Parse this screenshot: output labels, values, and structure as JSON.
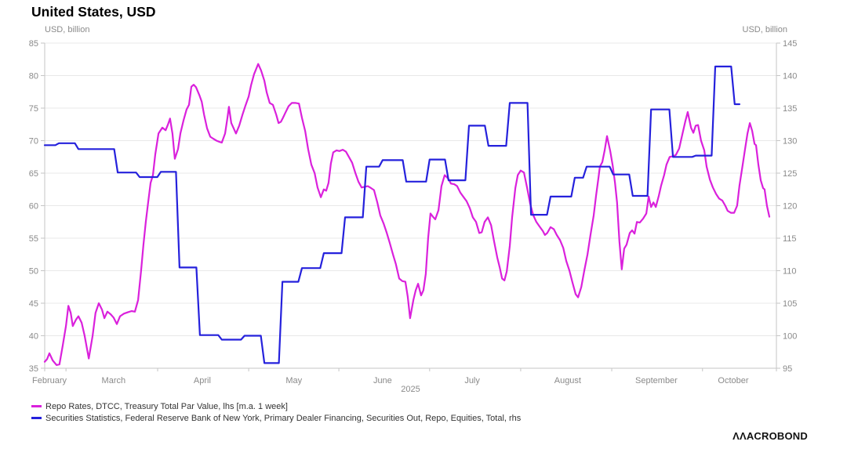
{
  "header": {
    "title": "United States, USD"
  },
  "footer": {
    "logo_text": "ΛΛACROBOND"
  },
  "colors": {
    "magenta": "#DA21DC",
    "blue": "#2521DC",
    "grid": "#E8E8E8",
    "axis": "#C6C6C6",
    "tick_text": "#8A8A8A",
    "legend_text": "#333333",
    "title_text": "#000000"
  },
  "chart_data": {
    "type": "line",
    "title": "United States, USD",
    "grid": "horizontal-only",
    "legend_position": "bottom-left",
    "left_axis": {
      "unit": "USD, billion",
      "min": 35,
      "max": 85,
      "ticks": [
        85,
        80,
        75,
        70,
        65,
        60,
        55,
        50,
        45,
        40,
        35
      ]
    },
    "right_axis": {
      "unit": "USD, billion",
      "min": 95,
      "max": 145,
      "ticks": [
        145,
        140,
        135,
        130,
        125,
        120,
        115,
        110,
        105,
        100,
        95
      ]
    },
    "x_axis": {
      "range": [
        0,
        247.5
      ],
      "tick_days": [
        0,
        7.2,
        38.2,
        69,
        99.5,
        130.2,
        161,
        191.8,
        222.5,
        247.5
      ],
      "months": [
        {
          "label": "February",
          "d": 1.6
        },
        {
          "label": "March",
          "d": 23.3
        },
        {
          "label": "April",
          "d": 53.3
        },
        {
          "label": "May",
          "d": 84.3
        },
        {
          "label": "June",
          "d": 114.3
        },
        {
          "label": "July",
          "d": 144.6
        },
        {
          "label": "August",
          "d": 176.9
        },
        {
          "label": "September",
          "d": 206.9
        },
        {
          "label": "October",
          "d": 232.9
        }
      ],
      "year_label": "2025"
    },
    "series": [
      {
        "label": "Repo Rates, DTCC, Treasury Total Par Value, lhs [m.a. 1 week]",
        "color": "#DA21DC",
        "axis": "left",
        "render": "line",
        "points": [
          [
            0,
            36.0
          ],
          [
            0.8,
            36.4
          ],
          [
            1.6,
            37.3
          ],
          [
            2.7,
            36.2
          ],
          [
            4,
            35.5
          ],
          [
            5,
            35.6
          ],
          [
            6.1,
            38.5
          ],
          [
            7.2,
            41.5
          ],
          [
            8,
            44.6
          ],
          [
            8.8,
            43.5
          ],
          [
            9.5,
            41.5
          ],
          [
            10.6,
            42.5
          ],
          [
            11.4,
            43.0
          ],
          [
            12.5,
            42.0
          ],
          [
            13.5,
            40.0
          ],
          [
            14.9,
            36.5
          ],
          [
            16.2,
            40.0
          ],
          [
            17.2,
            43.5
          ],
          [
            18.3,
            45.0
          ],
          [
            19.4,
            44.0
          ],
          [
            20.2,
            42.7
          ],
          [
            21.2,
            43.7
          ],
          [
            22.3,
            43.3
          ],
          [
            23.3,
            42.8
          ],
          [
            24.4,
            41.8
          ],
          [
            25.5,
            43.0
          ],
          [
            26.8,
            43.4
          ],
          [
            28.1,
            43.6
          ],
          [
            29.4,
            43.8
          ],
          [
            30.5,
            43.7
          ],
          [
            31.6,
            45.5
          ],
          [
            32.6,
            50.0
          ],
          [
            33.4,
            54.0
          ],
          [
            34.2,
            57.5
          ],
          [
            35,
            60.5
          ],
          [
            35.8,
            63.5
          ],
          [
            36.6,
            64.7
          ],
          [
            37.4,
            67.9
          ],
          [
            38.5,
            71.1
          ],
          [
            39.8,
            72.0
          ],
          [
            40.9,
            71.6
          ],
          [
            41.7,
            72.5
          ],
          [
            42.4,
            73.4
          ],
          [
            43.2,
            71.1
          ],
          [
            44,
            67.2
          ],
          [
            45.1,
            68.7
          ],
          [
            45.9,
            71.1
          ],
          [
            47,
            73.2
          ],
          [
            48,
            74.8
          ],
          [
            48.8,
            75.5
          ],
          [
            49.6,
            78.3
          ],
          [
            50.4,
            78.6
          ],
          [
            51.2,
            78.2
          ],
          [
            52.3,
            77.0
          ],
          [
            53.1,
            76.0
          ],
          [
            53.9,
            74.0
          ],
          [
            54.9,
            71.9
          ],
          [
            56,
            70.6
          ],
          [
            57,
            70.3
          ],
          [
            58.1,
            70.0
          ],
          [
            59.2,
            69.8
          ],
          [
            59.9,
            69.7
          ],
          [
            61,
            71.1
          ],
          [
            61.8,
            73.5
          ],
          [
            62.3,
            75.2
          ],
          [
            63.1,
            72.7
          ],
          [
            63.9,
            71.9
          ],
          [
            64.7,
            71.1
          ],
          [
            65.8,
            72.3
          ],
          [
            66.9,
            74.0
          ],
          [
            67.9,
            75.4
          ],
          [
            69,
            76.8
          ],
          [
            69.8,
            78.5
          ],
          [
            70.8,
            80.2
          ],
          [
            72.2,
            81.8
          ],
          [
            73.2,
            80.8
          ],
          [
            74.3,
            79.2
          ],
          [
            75.1,
            77.4
          ],
          [
            76.1,
            75.8
          ],
          [
            77.2,
            75.5
          ],
          [
            78.3,
            74.0
          ],
          [
            79.1,
            72.7
          ],
          [
            79.9,
            72.9
          ],
          [
            80.6,
            73.5
          ],
          [
            81.4,
            74.3
          ],
          [
            82.5,
            75.3
          ],
          [
            83.6,
            75.8
          ],
          [
            84.9,
            75.8
          ],
          [
            86,
            75.7
          ],
          [
            87,
            73.5
          ],
          [
            88.1,
            71.5
          ],
          [
            89.1,
            68.7
          ],
          [
            90.2,
            66.3
          ],
          [
            91.3,
            65.0
          ],
          [
            92.3,
            62.8
          ],
          [
            93.4,
            61.3
          ],
          [
            94.4,
            62.5
          ],
          [
            95.2,
            62.3
          ],
          [
            96,
            63.5
          ],
          [
            96.8,
            66.5
          ],
          [
            97.6,
            68.2
          ],
          [
            98.7,
            68.5
          ],
          [
            99.7,
            68.4
          ],
          [
            100.8,
            68.6
          ],
          [
            101.9,
            68.3
          ],
          [
            102.9,
            67.5
          ],
          [
            104,
            66.6
          ],
          [
            105.1,
            65.0
          ],
          [
            106.1,
            63.7
          ],
          [
            107.2,
            62.8
          ],
          [
            108.2,
            62.9
          ],
          [
            109.3,
            63.0
          ],
          [
            110.4,
            62.7
          ],
          [
            111.4,
            62.4
          ],
          [
            112.5,
            60.5
          ],
          [
            113.5,
            58.5
          ],
          [
            114.6,
            57.3
          ],
          [
            115.7,
            55.8
          ],
          [
            116.7,
            54.3
          ],
          [
            117.8,
            52.5
          ],
          [
            118.8,
            51.0
          ],
          [
            119.9,
            48.8
          ],
          [
            121,
            48.4
          ],
          [
            122,
            48.3
          ],
          [
            122.8,
            46.0
          ],
          [
            123.6,
            42.7
          ],
          [
            124.7,
            45.5
          ],
          [
            125.5,
            47.0
          ],
          [
            126.3,
            48.0
          ],
          [
            127.3,
            46.2
          ],
          [
            128.1,
            47.0
          ],
          [
            128.9,
            49.5
          ],
          [
            129.7,
            55.0
          ],
          [
            130.5,
            58.8
          ],
          [
            131.3,
            58.3
          ],
          [
            132.1,
            57.9
          ],
          [
            133.2,
            59.3
          ],
          [
            134.2,
            63.0
          ],
          [
            135.3,
            64.7
          ],
          [
            136.4,
            64.2
          ],
          [
            137.4,
            63.4
          ],
          [
            138.5,
            63.3
          ],
          [
            139.5,
            63.0
          ],
          [
            140.6,
            62.0
          ],
          [
            141.7,
            61.3
          ],
          [
            142.7,
            60.7
          ],
          [
            143.8,
            59.6
          ],
          [
            144.8,
            58.2
          ],
          [
            145.9,
            57.5
          ],
          [
            147,
            55.8
          ],
          [
            147.8,
            55.9
          ],
          [
            148.8,
            57.5
          ],
          [
            149.9,
            58.2
          ],
          [
            151,
            57.0
          ],
          [
            152,
            54.5
          ],
          [
            153.1,
            52.0
          ],
          [
            153.9,
            50.5
          ],
          [
            154.7,
            48.8
          ],
          [
            155.5,
            48.5
          ],
          [
            156.3,
            49.9
          ],
          [
            157.3,
            53.8
          ],
          [
            158.1,
            58.2
          ],
          [
            159.2,
            62.7
          ],
          [
            160,
            64.7
          ],
          [
            161,
            65.4
          ],
          [
            162.1,
            65.1
          ],
          [
            163.2,
            62.7
          ],
          [
            164.2,
            60.3
          ],
          [
            165.3,
            58.5
          ],
          [
            166.3,
            57.5
          ],
          [
            167.4,
            56.8
          ],
          [
            168.5,
            56.1
          ],
          [
            169.2,
            55.5
          ],
          [
            170,
            55.8
          ],
          [
            171.1,
            56.7
          ],
          [
            172.2,
            56.4
          ],
          [
            173.2,
            55.5
          ],
          [
            174.3,
            54.7
          ],
          [
            175.4,
            53.5
          ],
          [
            176.4,
            51.5
          ],
          [
            177.5,
            50.0
          ],
          [
            178.5,
            48.2
          ],
          [
            179.6,
            46.4
          ],
          [
            180.4,
            45.9
          ],
          [
            181.5,
            47.5
          ],
          [
            182.5,
            50.0
          ],
          [
            183.6,
            52.5
          ],
          [
            184.6,
            55.5
          ],
          [
            185.7,
            58.5
          ],
          [
            186.5,
            61.5
          ],
          [
            187.3,
            64.3
          ],
          [
            187.8,
            66.0
          ],
          [
            188.6,
            66.7
          ],
          [
            189.4,
            68.5
          ],
          [
            190.2,
            70.7
          ],
          [
            191.3,
            68.4
          ],
          [
            192.1,
            66.2
          ],
          [
            192.9,
            63.5
          ],
          [
            193.6,
            60.5
          ],
          [
            194.4,
            54.5
          ],
          [
            195.2,
            50.2
          ],
          [
            196,
            53.4
          ],
          [
            196.8,
            54.0
          ],
          [
            197.9,
            55.8
          ],
          [
            198.7,
            56.2
          ],
          [
            199.5,
            55.7
          ],
          [
            200.3,
            57.5
          ],
          [
            201.3,
            57.4
          ],
          [
            202.4,
            58.0
          ],
          [
            203.5,
            58.8
          ],
          [
            204.3,
            61.4
          ],
          [
            205.1,
            59.8
          ],
          [
            205.9,
            60.5
          ],
          [
            206.7,
            59.8
          ],
          [
            207.7,
            61.5
          ],
          [
            208.5,
            63.1
          ],
          [
            209.5,
            64.7
          ],
          [
            210.3,
            66.3
          ],
          [
            211.4,
            67.5
          ],
          [
            212.5,
            67.6
          ],
          [
            213.5,
            67.8
          ],
          [
            214.6,
            68.8
          ],
          [
            215.7,
            71.0
          ],
          [
            216.7,
            73.0
          ],
          [
            217.5,
            74.4
          ],
          [
            218.6,
            72.0
          ],
          [
            219.4,
            71.2
          ],
          [
            220.2,
            72.3
          ],
          [
            221,
            72.4
          ],
          [
            222,
            70.0
          ],
          [
            223.1,
            68.5
          ],
          [
            223.9,
            66.0
          ],
          [
            225,
            64.0
          ],
          [
            226,
            62.8
          ],
          [
            227.1,
            61.8
          ],
          [
            228.1,
            61.1
          ],
          [
            229.2,
            60.8
          ],
          [
            230.2,
            60.0
          ],
          [
            231,
            59.2
          ],
          [
            232.1,
            58.9
          ],
          [
            233.2,
            58.9
          ],
          [
            234.2,
            60.0
          ],
          [
            235,
            63.1
          ],
          [
            236.1,
            66.3
          ],
          [
            236.9,
            68.7
          ],
          [
            237.7,
            71.1
          ],
          [
            238.5,
            72.7
          ],
          [
            239.3,
            71.5
          ],
          [
            240.1,
            69.5
          ],
          [
            240.6,
            69.3
          ],
          [
            241.4,
            66.3
          ],
          [
            242.2,
            63.9
          ],
          [
            243,
            62.7
          ],
          [
            243.5,
            62.5
          ],
          [
            244.3,
            60.0
          ],
          [
            245.1,
            58.3
          ]
        ]
      },
      {
        "label": "Securities Statistics, Federal Reserve Bank of New York, Primary Dealer Financing, Securities Out, Repo, Equities, Total, rhs",
        "color": "#2521DC",
        "axis": "right",
        "render": "step",
        "end_day": 235,
        "points": [
          [
            0,
            129.3
          ],
          [
            4.8,
            129.6
          ],
          [
            11.4,
            128.7
          ],
          [
            24.7,
            125.1
          ],
          [
            32.1,
            124.4
          ],
          [
            39.3,
            125.2
          ],
          [
            45.6,
            110.5
          ],
          [
            52.5,
            100.1
          ],
          [
            59.9,
            99.4
          ],
          [
            67.6,
            100.0
          ],
          [
            74.3,
            95.8
          ],
          [
            80.4,
            108.3
          ],
          [
            87,
            110.4
          ],
          [
            94.4,
            112.7
          ],
          [
            101.6,
            118.2
          ],
          [
            108.8,
            126.0
          ],
          [
            114.3,
            127.0
          ],
          [
            122.3,
            123.7
          ],
          [
            130.2,
            127.1
          ],
          [
            136.6,
            123.9
          ],
          [
            143.5,
            132.3
          ],
          [
            150.1,
            129.2
          ],
          [
            157.3,
            135.8
          ],
          [
            164.5,
            118.6
          ],
          [
            171.1,
            121.4
          ],
          [
            179.3,
            124.3
          ],
          [
            183.3,
            126.0
          ],
          [
            192.3,
            124.8
          ],
          [
            198.9,
            121.5
          ],
          [
            205.1,
            134.8
          ],
          [
            212.5,
            127.5
          ],
          [
            220.2,
            127.7
          ],
          [
            226.8,
            141.4
          ],
          [
            233.4,
            135.6
          ]
        ]
      }
    ]
  }
}
